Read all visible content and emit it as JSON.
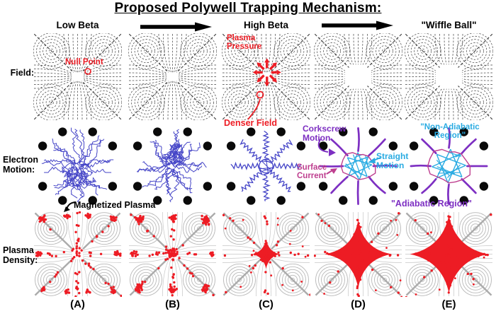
{
  "title": "Proposed Polywell Trapping Mechanism:",
  "header": {
    "low_beta": "Low Beta",
    "high_beta": "High Beta",
    "wiffle_ball": "\"Wiffle Ball\""
  },
  "row_labels": [
    "Field:",
    "Electron\nMotion:",
    "Plasma\nDensity:"
  ],
  "columns": [
    "(A)",
    "(B)",
    "(C)",
    "(D)",
    "(E)"
  ],
  "annotations": {
    "null_point": "Null Point",
    "plasma_pressure": "Plasma Pressure",
    "denser_field": "Denser Field",
    "magnetized_plasma": "Magnetized Plasma",
    "corkscrew_motion": "Corkscrew Motion",
    "straight_motion": "Straight Motion",
    "surface_current": "Surface Current",
    "non_adiabatic_region": "\"Non-Adiabatic Region\"",
    "adiabatic_region": "\"Adiabatic Region\""
  },
  "colors": {
    "red": "#ED1C24",
    "blue": "#4545C7",
    "purple": "#7D2FC2",
    "cyan": "#29ABE2",
    "magenta": "#BE3F8F",
    "black": "#0A0A0A",
    "field_line": "#3C3C3C",
    "gray_contour": "#B9B9B9",
    "gray_line": "#ABABAB"
  },
  "panels": [
    {
      "row": "field",
      "col": 0,
      "kind": "field",
      "variant": "open"
    },
    {
      "row": "field",
      "col": 1,
      "kind": "field",
      "variant": "open"
    },
    {
      "row": "field",
      "col": 2,
      "kind": "field",
      "variant": "pressure"
    },
    {
      "row": "field",
      "col": 3,
      "kind": "field",
      "variant": "pinched"
    },
    {
      "row": "field",
      "col": 4,
      "kind": "field",
      "variant": "pinched"
    },
    {
      "row": "electron",
      "col": 0,
      "kind": "electron",
      "variant": "fuzzy",
      "spread": 1.0
    },
    {
      "row": "electron",
      "col": 1,
      "kind": "electron",
      "variant": "fuzzy",
      "spread": 0.95
    },
    {
      "row": "electron",
      "col": 2,
      "kind": "electron",
      "variant": "corkscrew"
    },
    {
      "row": "electron",
      "col": 3,
      "kind": "electron",
      "variant": "wiffle",
      "core": 0.17
    },
    {
      "row": "electron",
      "col": 4,
      "kind": "electron",
      "variant": "wiffle",
      "core": 0.21
    },
    {
      "row": "plasma",
      "col": 0,
      "kind": "plasma",
      "variant": "sparse"
    },
    {
      "row": "plasma",
      "col": 1,
      "kind": "plasma",
      "variant": "clumped"
    },
    {
      "row": "plasma",
      "col": 2,
      "kind": "plasma",
      "variant": "small-star"
    },
    {
      "row": "plasma",
      "col": 3,
      "kind": "plasma",
      "variant": "star"
    },
    {
      "row": "plasma",
      "col": 4,
      "kind": "plasma",
      "variant": "big-star"
    }
  ]
}
